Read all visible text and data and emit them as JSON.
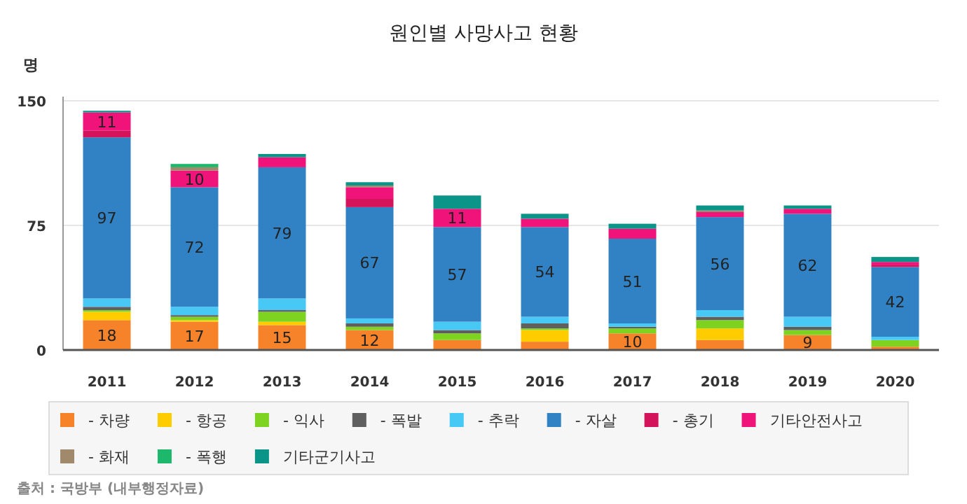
{
  "chart_data": {
    "type": "bar",
    "stacked": true,
    "title": "원인별 사망사고 현황",
    "ylabel": "명",
    "categories": [
      "2011",
      "2012",
      "2013",
      "2014",
      "2015",
      "2016",
      "2017",
      "2018",
      "2019",
      "2020"
    ],
    "ylim": [
      0,
      150
    ],
    "yticks": [
      0,
      75,
      150
    ],
    "grid": "y",
    "legend": "bottom",
    "series": [
      {
        "name": "- 차량",
        "color": "#f6832a",
        "values": [
          18,
          17,
          15,
          12,
          6,
          5,
          10,
          6,
          9,
          2
        ],
        "value_labels": [
          "18",
          "17",
          "15",
          "12",
          null,
          null,
          "10",
          null,
          "9",
          null
        ]
      },
      {
        "name": "- 항공",
        "color": "#ffcc00",
        "values": [
          5,
          1,
          2,
          0,
          0,
          7,
          0,
          7,
          0,
          0
        ]
      },
      {
        "name": "- 익사",
        "color": "#7ed321",
        "values": [
          1,
          2,
          6,
          2,
          4,
          1,
          3,
          5,
          3,
          4
        ]
      },
      {
        "name": "- 폭발",
        "color": "#5f5f5f",
        "values": [
          2,
          1,
          1,
          2,
          2,
          3,
          1,
          2,
          2,
          0
        ]
      },
      {
        "name": "- 추락",
        "color": "#47c8f5",
        "values": [
          5,
          5,
          7,
          3,
          5,
          4,
          2,
          4,
          6,
          2
        ]
      },
      {
        "name": "- 자살",
        "color": "#3182c4",
        "values": [
          97,
          72,
          79,
          67,
          57,
          54,
          51,
          56,
          62,
          42
        ],
        "value_labels": [
          "97",
          "72",
          "79",
          "67",
          "57",
          "54",
          "51",
          "56",
          "62",
          "42"
        ]
      },
      {
        "name": "- 총기",
        "color": "#d4145a",
        "values": [
          4,
          0,
          0,
          5,
          0,
          0,
          0,
          0,
          0,
          1
        ]
      },
      {
        "name": "기타안전사고",
        "color": "#f0147a",
        "values": [
          11,
          10,
          6,
          7,
          11,
          5,
          6,
          3,
          3,
          2
        ],
        "value_labels": [
          "11",
          "10",
          null,
          null,
          "11",
          null,
          null,
          null,
          null,
          null
        ]
      },
      {
        "name": "- 화재",
        "color": "#a08a6b",
        "values": [
          0,
          2,
          0,
          1,
          0,
          0,
          0,
          1,
          0,
          0
        ]
      },
      {
        "name": "- 폭행",
        "color": "#1db86b",
        "values": [
          0,
          2,
          0,
          0,
          0,
          0,
          0,
          0,
          0,
          0
        ]
      },
      {
        "name": "기타군기사고",
        "color": "#0b9488",
        "values": [
          1,
          0,
          2,
          2,
          8,
          3,
          3,
          3,
          2,
          3
        ]
      }
    ],
    "annotations": [
      "출처 : 국방부 (내부행정자료)"
    ]
  }
}
